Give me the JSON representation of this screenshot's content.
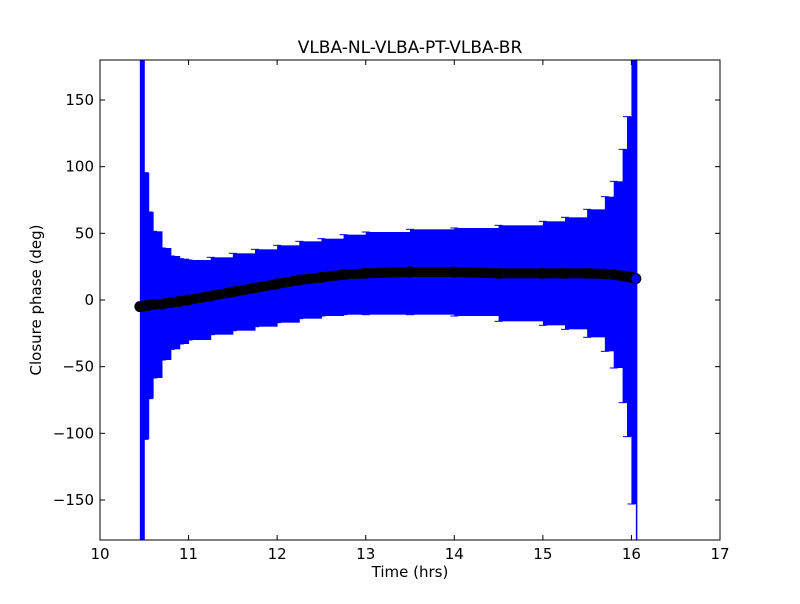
{
  "chart_data": {
    "type": "scatter",
    "title": "VLBA-NL-VLBA-PT-VLBA-BR",
    "xlabel": "Time (hrs)",
    "ylabel": "Closure phase (deg)",
    "xlim": [
      10,
      17
    ],
    "ylim": [
      -180,
      180
    ],
    "xticks": [
      "10",
      "11",
      "12",
      "13",
      "14",
      "15",
      "16",
      "17"
    ],
    "yticks": [
      "150",
      "100",
      "50",
      "0",
      "−50",
      "−100",
      "−150"
    ],
    "ytick_values": [
      150,
      100,
      50,
      0,
      -50,
      -100,
      -150
    ],
    "grid": false,
    "series": [
      {
        "name": "closure phase",
        "marker_color": "#000000",
        "errorbar_color": "#0000ff",
        "x": [
          10.45,
          10.5,
          10.55,
          10.6,
          10.7,
          10.8,
          10.9,
          11.0,
          11.25,
          11.5,
          11.75,
          12.0,
          12.25,
          12.5,
          12.75,
          13.0,
          13.5,
          14.0,
          14.5,
          15.0,
          15.25,
          15.5,
          15.7,
          15.8,
          15.9,
          15.95,
          16.0,
          16.05
        ],
        "y": [
          -5,
          -4.5,
          -4,
          -3.5,
          -3,
          -2,
          -1,
          0,
          3,
          6,
          9,
          12,
          15,
          17,
          19,
          20,
          21,
          21,
          20,
          20,
          20,
          20,
          19.5,
          19,
          18,
          17.5,
          17,
          16
        ],
        "err": [
          200,
          100,
          70,
          55,
          42,
          35,
          32,
          30,
          29,
          29,
          29,
          29,
          29,
          29,
          30,
          31,
          32,
          33,
          36,
          39,
          42,
          48,
          58,
          70,
          95,
          120,
          170,
          220
        ]
      }
    ]
  }
}
